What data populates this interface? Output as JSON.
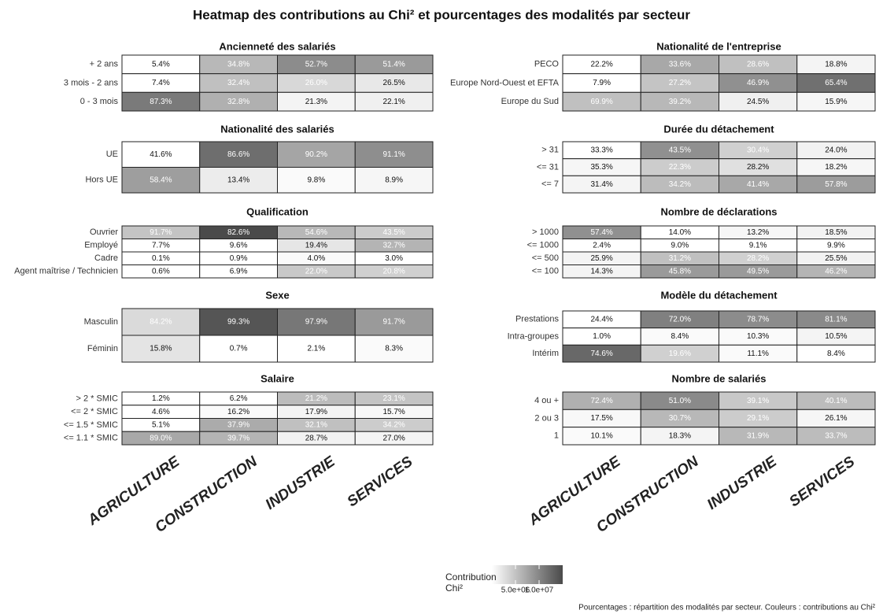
{
  "chart_data": {
    "type": "heatmap",
    "title": "Heatmap des contributions au Chi² et pourcentages des modalités par secteur",
    "categories": [
      "AGRICULTURE",
      "CONSTRUCTION",
      "INDUSTRIE",
      "SERVICES"
    ],
    "panels": [
      {
        "title": "Ancienneté des salariés",
        "rows": [
          "+ 2 ans",
          "3 mois - 2 ans",
          "0 - 3 mois"
        ],
        "values": [
          [
            5.4,
            34.8,
            52.7,
            51.4
          ],
          [
            7.4,
            32.4,
            26.0,
            26.5
          ],
          [
            87.3,
            32.8,
            21.3,
            22.1
          ]
        ],
        "value_labels": [
          [
            "5.4%",
            "34.8%",
            "52.7%",
            "51.4%"
          ],
          [
            "7.4%",
            "32.4%",
            "26.0%",
            "26.5%"
          ],
          [
            "87.3%",
            "32.8%",
            "21.3%",
            "22.1%"
          ]
        ],
        "colors": [
          [
            "#ffffff",
            "#b8b8b8",
            "#8c8c8c",
            "#9a9a9a"
          ],
          [
            "#ffffff",
            "#c0c0c0",
            "#d8d8d8",
            "#e8e8e8"
          ],
          [
            "#7a7a7a",
            "#b0b0b0",
            "#f4f4f4",
            "#f0f0f0"
          ]
        ]
      },
      {
        "title": "Nationalité des salariés",
        "rows": [
          "UE",
          "Hors UE"
        ],
        "values": [
          [
            41.6,
            86.6,
            90.2,
            91.1
          ],
          [
            58.4,
            13.4,
            9.8,
            8.9
          ]
        ],
        "value_labels": [
          [
            "41.6%",
            "86.6%",
            "90.2%",
            "91.1%"
          ],
          [
            "58.4%",
            "13.4%",
            "9.8%",
            "8.9%"
          ]
        ],
        "colors": [
          [
            "#ffffff",
            "#6e6e6e",
            "#a5a5a5",
            "#8e8e8e"
          ],
          [
            "#9e9e9e",
            "#ececec",
            "#fafafa",
            "#f6f6f6"
          ]
        ]
      },
      {
        "title": "Qualification",
        "rows": [
          "Ouvrier",
          "Employé",
          "Cadre",
          "Agent maîtrise / Technicien"
        ],
        "values": [
          [
            91.7,
            82.6,
            54.6,
            43.5
          ],
          [
            7.7,
            9.6,
            19.4,
            32.7
          ],
          [
            0.1,
            0.9,
            4.0,
            3.0
          ],
          [
            0.6,
            6.9,
            22.0,
            20.8
          ]
        ],
        "value_labels": [
          [
            "91.7%",
            "82.6%",
            "54.6%",
            "43.5%"
          ],
          [
            "7.7%",
            "9.6%",
            "19.4%",
            "32.7%"
          ],
          [
            "0.1%",
            "0.9%",
            "4.0%",
            "3.0%"
          ],
          [
            "0.6%",
            "6.9%",
            "22.0%",
            "20.8%"
          ]
        ],
        "colors": [
          [
            "#c4c4c4",
            "#4a4a4a",
            "#b8b8b8",
            "#cccccc"
          ],
          [
            "#ffffff",
            "#ffffff",
            "#e6e6e6",
            "#b4b4b4"
          ],
          [
            "#ffffff",
            "#ffffff",
            "#fafafa",
            "#ffffff"
          ],
          [
            "#ffffff",
            "#ffffff",
            "#c8c8c8",
            "#d0d0d0"
          ]
        ]
      },
      {
        "title": "Sexe",
        "rows": [
          "Masculin",
          "Féminin"
        ],
        "values": [
          [
            84.2,
            99.3,
            97.9,
            91.7
          ],
          [
            15.8,
            0.7,
            2.1,
            8.3
          ]
        ],
        "value_labels": [
          [
            "84.2%",
            "99.3%",
            "97.9%",
            "91.7%"
          ],
          [
            "15.8%",
            "0.7%",
            "2.1%",
            "8.3%"
          ]
        ],
        "colors": [
          [
            "#dadada",
            "#555555",
            "#777777",
            "#9a9a9a"
          ],
          [
            "#e4e4e4",
            "#ffffff",
            "#ffffff",
            "#fafafa"
          ]
        ]
      },
      {
        "title": "Salaire",
        "rows": [
          "> 2 * SMIC",
          "<= 2 * SMIC",
          "<= 1.5 * SMIC",
          "<= 1.1 * SMIC"
        ],
        "values": [
          [
            1.2,
            6.2,
            21.2,
            23.1
          ],
          [
            4.6,
            16.2,
            17.9,
            15.7
          ],
          [
            5.1,
            37.9,
            32.1,
            34.2
          ],
          [
            89.0,
            39.7,
            28.7,
            27.0
          ]
        ],
        "value_labels": [
          [
            "1.2%",
            "6.2%",
            "21.2%",
            "23.1%"
          ],
          [
            "4.6%",
            "16.2%",
            "17.9%",
            "15.7%"
          ],
          [
            "5.1%",
            "37.9%",
            "32.1%",
            "34.2%"
          ],
          [
            "89.0%",
            "39.7%",
            "28.7%",
            "27.0%"
          ]
        ],
        "colors": [
          [
            "#ffffff",
            "#ffffff",
            "#bcbcbc",
            "#c4c4c4"
          ],
          [
            "#ffffff",
            "#fafafa",
            "#f4f4f4",
            "#f8f8f8"
          ],
          [
            "#ffffff",
            "#ababab",
            "#c0c0c0",
            "#cccccc"
          ],
          [
            "#a8a8a8",
            "#b4b4b4",
            "#f2f2f2",
            "#f4f4f4"
          ]
        ]
      },
      {
        "title": "Nationalité de l'entreprise",
        "rows": [
          "PECO",
          "Europe Nord-Ouest et EFTA",
          "Europe du Sud"
        ],
        "values": [
          [
            22.2,
            33.6,
            28.6,
            18.8
          ],
          [
            7.9,
            27.2,
            46.9,
            65.4
          ],
          [
            69.9,
            39.2,
            24.5,
            15.9
          ]
        ],
        "value_labels": [
          [
            "22.2%",
            "33.6%",
            "28.6%",
            "18.8%"
          ],
          [
            "7.9%",
            "27.2%",
            "46.9%",
            "65.4%"
          ],
          [
            "69.9%",
            "39.2%",
            "24.5%",
            "15.9%"
          ]
        ],
        "colors": [
          [
            "#ffffff",
            "#a8a8a8",
            "#c0c0c0",
            "#f4f4f4"
          ],
          [
            "#ffffff",
            "#c4c4c4",
            "#909090",
            "#707070"
          ],
          [
            "#c0c0c0",
            "#b8b8b8",
            "#f0f0f0",
            "#f6f6f6"
          ]
        ]
      },
      {
        "title": "Durée du détachement",
        "rows": [
          "> 31",
          "<= 31",
          "<= 7"
        ],
        "values": [
          [
            33.3,
            43.5,
            30.4,
            24.0
          ],
          [
            35.3,
            22.3,
            28.2,
            18.2
          ],
          [
            31.4,
            34.2,
            41.4,
            57.8
          ]
        ],
        "value_labels": [
          [
            "33.3%",
            "43.5%",
            "30.4%",
            "24.0%"
          ],
          [
            "35.3%",
            "22.3%",
            "28.2%",
            "18.2%"
          ],
          [
            "31.4%",
            "34.2%",
            "41.4%",
            "57.8%"
          ]
        ],
        "colors": [
          [
            "#ffffff",
            "#909090",
            "#d0d0d0",
            "#f2f2f2"
          ],
          [
            "#f6f6f6",
            "#cccccc",
            "#e0e0e0",
            "#f6f6f6"
          ],
          [
            "#f4f4f4",
            "#bcbcbc",
            "#a8a8a8",
            "#9c9c9c"
          ]
        ]
      },
      {
        "title": "Nombre de déclarations",
        "rows": [
          "> 1000",
          "<= 1000",
          "<= 500",
          "<= 100"
        ],
        "values": [
          [
            57.4,
            14.0,
            13.2,
            18.5
          ],
          [
            2.4,
            9.0,
            9.1,
            9.9
          ],
          [
            25.9,
            31.2,
            28.2,
            25.5
          ],
          [
            14.3,
            45.8,
            49.5,
            46.2
          ]
        ],
        "value_labels": [
          [
            "57.4%",
            "14.0%",
            "13.2%",
            "18.5%"
          ],
          [
            "2.4%",
            "9.0%",
            "9.1%",
            "9.9%"
          ],
          [
            "25.9%",
            "31.2%",
            "28.2%",
            "25.5%"
          ],
          [
            "14.3%",
            "45.8%",
            "49.5%",
            "46.2%"
          ]
        ],
        "colors": [
          [
            "#909090",
            "#ffffff",
            "#f6f6f6",
            "#f2f2f2"
          ],
          [
            "#ffffff",
            "#ffffff",
            "#ffffff",
            "#ffffff"
          ],
          [
            "#f4f4f4",
            "#c0c0c0",
            "#d0d0d0",
            "#f2f2f2"
          ],
          [
            "#f4f4f4",
            "#9a9a9a",
            "#9a9a9a",
            "#b4b4b4"
          ]
        ]
      },
      {
        "title": "Modèle du détachement",
        "rows": [
          "Prestations",
          "Intra-groupes",
          "Intérim"
        ],
        "values": [
          [
            24.4,
            72.0,
            78.7,
            81.1
          ],
          [
            1.0,
            8.4,
            10.3,
            10.5
          ],
          [
            74.6,
            19.6,
            11.1,
            8.4
          ]
        ],
        "value_labels": [
          [
            "24.4%",
            "72.0%",
            "78.7%",
            "81.1%"
          ],
          [
            "1.0%",
            "8.4%",
            "10.3%",
            "10.5%"
          ],
          [
            "74.6%",
            "19.6%",
            "11.1%",
            "8.4%"
          ]
        ],
        "colors": [
          [
            "#ffffff",
            "#808080",
            "#8c8c8c",
            "#8a8a8a"
          ],
          [
            "#ffffff",
            "#fafafa",
            "#fafafa",
            "#f4f4f4"
          ],
          [
            "#686868",
            "#d0d0d0",
            "#fafafa",
            "#ffffff"
          ]
        ]
      },
      {
        "title": "Nombre de salariés",
        "rows": [
          "4 ou +",
          "2 ou 3",
          "1"
        ],
        "values": [
          [
            72.4,
            51.0,
            39.1,
            40.1
          ],
          [
            17.5,
            30.7,
            29.1,
            26.1
          ],
          [
            10.1,
            18.3,
            31.9,
            33.7
          ]
        ],
        "value_labels": [
          [
            "72.4%",
            "51.0%",
            "39.1%",
            "40.1%"
          ],
          [
            "17.5%",
            "30.7%",
            "29.1%",
            "26.1%"
          ],
          [
            "10.1%",
            "18.3%",
            "31.9%",
            "33.7%"
          ]
        ],
        "colors": [
          [
            "#b0b0b0",
            "#8a8a8a",
            "#c8c8c8",
            "#bcbcbc"
          ],
          [
            "#f8f8f8",
            "#b8b8b8",
            "#cccccc",
            "#f6f6f6"
          ],
          [
            "#fafafa",
            "#f4f4f4",
            "#b8b8b8",
            "#bcbcbc"
          ]
        ]
      }
    ],
    "legend": {
      "title": "Contribution Chi²",
      "lim": [
        0,
        15000000
      ],
      "ticks": [
        {
          "value": 5000000,
          "label": "5.0e+06"
        },
        {
          "value": 10000000,
          "label": "1.0e+07"
        }
      ],
      "colors": [
        "#ffffff",
        "#4a4a4a"
      ]
    },
    "caption": "Pourcentages : répartition des modalités par secteur. Couleurs : contributions au Chi²"
  }
}
